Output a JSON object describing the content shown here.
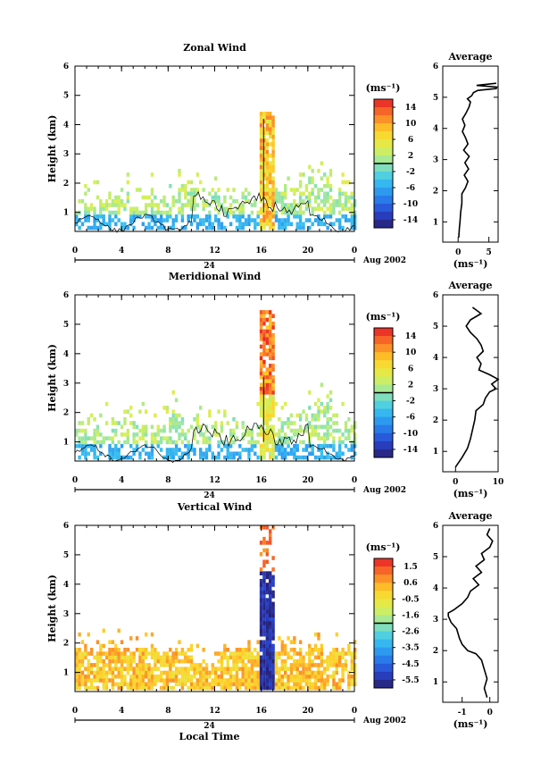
{
  "chart_data": [
    {
      "type": "heatmap",
      "title": "Zonal Wind",
      "ylabel": "Height (km)",
      "xticks": [
        "0",
        "4",
        "8",
        "12",
        "16",
        "20",
        "0"
      ],
      "yticks": [
        "1",
        "2",
        "3",
        "4",
        "5",
        "6"
      ],
      "xlim": [
        0,
        24
      ],
      "ylim": [
        0.35,
        6
      ],
      "date_axis": {
        "mark": "24",
        "label": "Aug 2002"
      },
      "colorbar": {
        "unit": "(ms⁻¹)",
        "ticks": [
          "14",
          "10",
          "6",
          "2",
          "-2",
          "-6",
          "-10",
          "-14"
        ],
        "range": [
          -16,
          16
        ]
      },
      "profile": {
        "title": "Average",
        "xlabel": "(ms⁻¹)",
        "xticks": [
          "0",
          "5"
        ],
        "xlim": [
          -2.5,
          6.5
        ],
        "height": [
          0.5,
          0.8,
          1.0,
          1.3,
          1.6,
          1.9,
          2.1,
          2.3,
          2.5,
          2.7,
          2.9,
          3.1,
          3.3,
          3.5,
          3.7,
          3.9,
          4.1,
          4.3,
          4.5,
          4.7,
          4.85,
          4.95,
          5.05,
          5.15,
          5.22,
          5.28,
          5.33,
          5.38,
          5.45
        ],
        "value": [
          0.1,
          0.2,
          0.3,
          0.4,
          0.6,
          0.6,
          1.2,
          1.6,
          1.0,
          1.7,
          1.1,
          1.8,
          0.9,
          1.6,
          1.2,
          0.7,
          1.1,
          0.7,
          1.3,
          1.8,
          2.0,
          1.5,
          2.2,
          2.5,
          3.2,
          6.2,
          6.3,
          3.0,
          6.2
        ]
      }
    },
    {
      "type": "heatmap",
      "title": "Meridional Wind",
      "ylabel": "Height (km)",
      "xticks": [
        "0",
        "4",
        "8",
        "12",
        "16",
        "20",
        "0"
      ],
      "yticks": [
        "1",
        "2",
        "3",
        "4",
        "5",
        "6"
      ],
      "xlim": [
        0,
        24
      ],
      "ylim": [
        0.35,
        6
      ],
      "date_axis": {
        "mark": "24",
        "label": "Aug 2002"
      },
      "colorbar": {
        "unit": "(ms⁻¹)",
        "ticks": [
          "14",
          "10",
          "6",
          "2",
          "-2",
          "-6",
          "-10",
          "-14"
        ],
        "range": [
          -16,
          16
        ]
      },
      "profile": {
        "title": "Average",
        "xlabel": "(ms⁻¹)",
        "xticks": [
          "0",
          "10"
        ],
        "xlim": [
          -3,
          10
        ],
        "height": [
          0.5,
          0.8,
          1.1,
          1.4,
          1.7,
          2.0,
          2.3,
          2.5,
          2.7,
          2.9,
          3.0,
          3.15,
          3.3,
          3.45,
          3.6,
          3.8,
          4.0,
          4.2,
          4.4,
          4.6,
          4.8,
          5.0,
          5.2,
          5.4,
          5.6
        ],
        "value": [
          0.0,
          1.5,
          2.8,
          3.5,
          4.0,
          4.5,
          4.8,
          6.5,
          7.0,
          8.0,
          9.5,
          8.5,
          10.0,
          8.0,
          5.5,
          6.0,
          5.0,
          6.5,
          6.0,
          5.0,
          3.5,
          2.5,
          3.5,
          6.0,
          4.0
        ]
      }
    },
    {
      "type": "heatmap",
      "title": "Vertical Wind",
      "ylabel": "Height (km)",
      "xlabel": "Local Time",
      "xticks": [
        "0",
        "4",
        "8",
        "12",
        "16",
        "20",
        "0"
      ],
      "yticks": [
        "1",
        "2",
        "3",
        "4",
        "5",
        "6"
      ],
      "xlim": [
        0,
        24
      ],
      "ylim": [
        0.35,
        6
      ],
      "date_axis": {
        "mark": "24",
        "label": "Aug 2002"
      },
      "colorbar": {
        "unit": "(ms⁻¹)",
        "ticks": [
          "1.5",
          "0.6",
          "-0.5",
          "-1.6",
          "-2.6",
          "-3.5",
          "-4.5",
          "-5.5"
        ],
        "range": [
          -6,
          2
        ]
      },
      "profile": {
        "title": "Average",
        "xlabel": "(ms⁻¹)",
        "xticks": [
          "-1",
          "0"
        ],
        "xlim": [
          -1.7,
          0.3
        ],
        "height": [
          0.5,
          0.8,
          1.1,
          1.4,
          1.7,
          1.9,
          2.0,
          2.2,
          2.4,
          2.7,
          2.9,
          3.1,
          3.2,
          3.3,
          3.5,
          3.7,
          3.9,
          4.1,
          4.3,
          4.5,
          4.7,
          4.9,
          5.1,
          5.3,
          5.5,
          5.7,
          5.9
        ],
        "value": [
          -0.1,
          -0.2,
          -0.1,
          -0.2,
          -0.3,
          -0.5,
          -0.8,
          -1.0,
          -1.1,
          -1.2,
          -1.4,
          -1.5,
          -1.5,
          -1.3,
          -1.0,
          -0.8,
          -0.7,
          -0.4,
          -0.6,
          -0.3,
          -0.5,
          -0.2,
          -0.3,
          0.0,
          0.1,
          -0.1,
          0.0
        ]
      }
    }
  ]
}
